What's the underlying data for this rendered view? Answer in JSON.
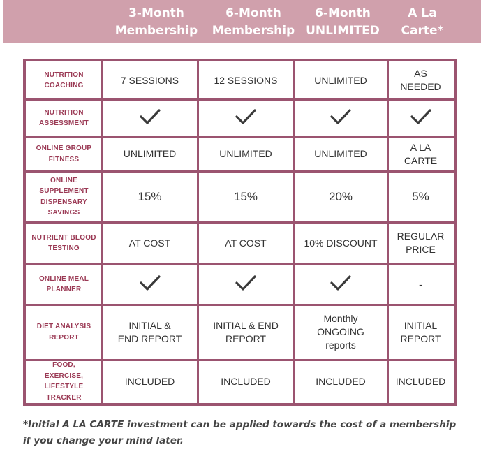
{
  "header": {
    "col1": [
      "3-Month",
      "Membership"
    ],
    "col2": [
      "6-Month",
      "Membership"
    ],
    "col3": [
      "6-Month",
      "UNLIMITED"
    ],
    "col4": [
      "A La",
      "Carte*"
    ]
  },
  "rows": [
    {
      "label": [
        "NUTRITION",
        "COACHING"
      ],
      "cells": [
        [
          "7 SESSIONS"
        ],
        [
          "12 SESSIONS"
        ],
        [
          "UNLIMITED"
        ],
        [
          "AS",
          "NEEDED"
        ]
      ]
    },
    {
      "label": [
        "NUTRITION",
        "ASSESSMENT"
      ],
      "cells": [
        "check",
        "check",
        "check",
        "check"
      ]
    },
    {
      "label": [
        "ONLINE GROUP",
        "FITNESS"
      ],
      "cells": [
        [
          "UNLIMITED"
        ],
        [
          "UNLIMITED"
        ],
        [
          "UNLIMITED"
        ],
        [
          "A LA",
          "CARTE"
        ]
      ]
    },
    {
      "label": [
        "ONLINE",
        "SUPPLEMENT",
        "DISPENSARY",
        "SAVINGS"
      ],
      "cells": [
        [
          "15%"
        ],
        [
          "15%"
        ],
        [
          "20%"
        ],
        [
          "5%"
        ]
      ]
    },
    {
      "label": [
        "NUTRIENT BLOOD",
        "TESTING"
      ],
      "cells": [
        [
          "AT COST"
        ],
        [
          "AT COST"
        ],
        [
          "10% DISCOUNT"
        ],
        [
          "REGULAR",
          "PRICE"
        ]
      ]
    },
    {
      "label": [
        "ONLINE MEAL",
        "PLANNER"
      ],
      "cells": [
        "check",
        "check",
        "check",
        [
          "-"
        ]
      ]
    },
    {
      "label": [
        "DIET ANALYSIS",
        "REPORT"
      ],
      "cells": [
        [
          "INITIAL &",
          "END REPORT"
        ],
        [
          "INITIAL & END",
          "REPORT"
        ],
        [
          "Monthly",
          "ONGOING",
          "reports"
        ],
        [
          "INITIAL",
          "REPORT"
        ]
      ]
    },
    {
      "label": [
        "FOOD,",
        "EXERCISE,",
        "LIFESTYLE",
        "TRACKER"
      ],
      "cells": [
        [
          "INCLUDED"
        ],
        [
          "INCLUDED"
        ],
        [
          "INCLUDED"
        ],
        [
          "INCLUDED"
        ]
      ]
    }
  ],
  "footnote": [
    "*Initial A LA CARTE investment can be applied towards the cost of a membership",
    "if you change your mind later."
  ],
  "colors": {
    "header_bg": "#d0a0ac",
    "grid": "#9b5470",
    "label_text": "#9b3a55"
  },
  "icons": {
    "check": "check-mark-icon"
  }
}
